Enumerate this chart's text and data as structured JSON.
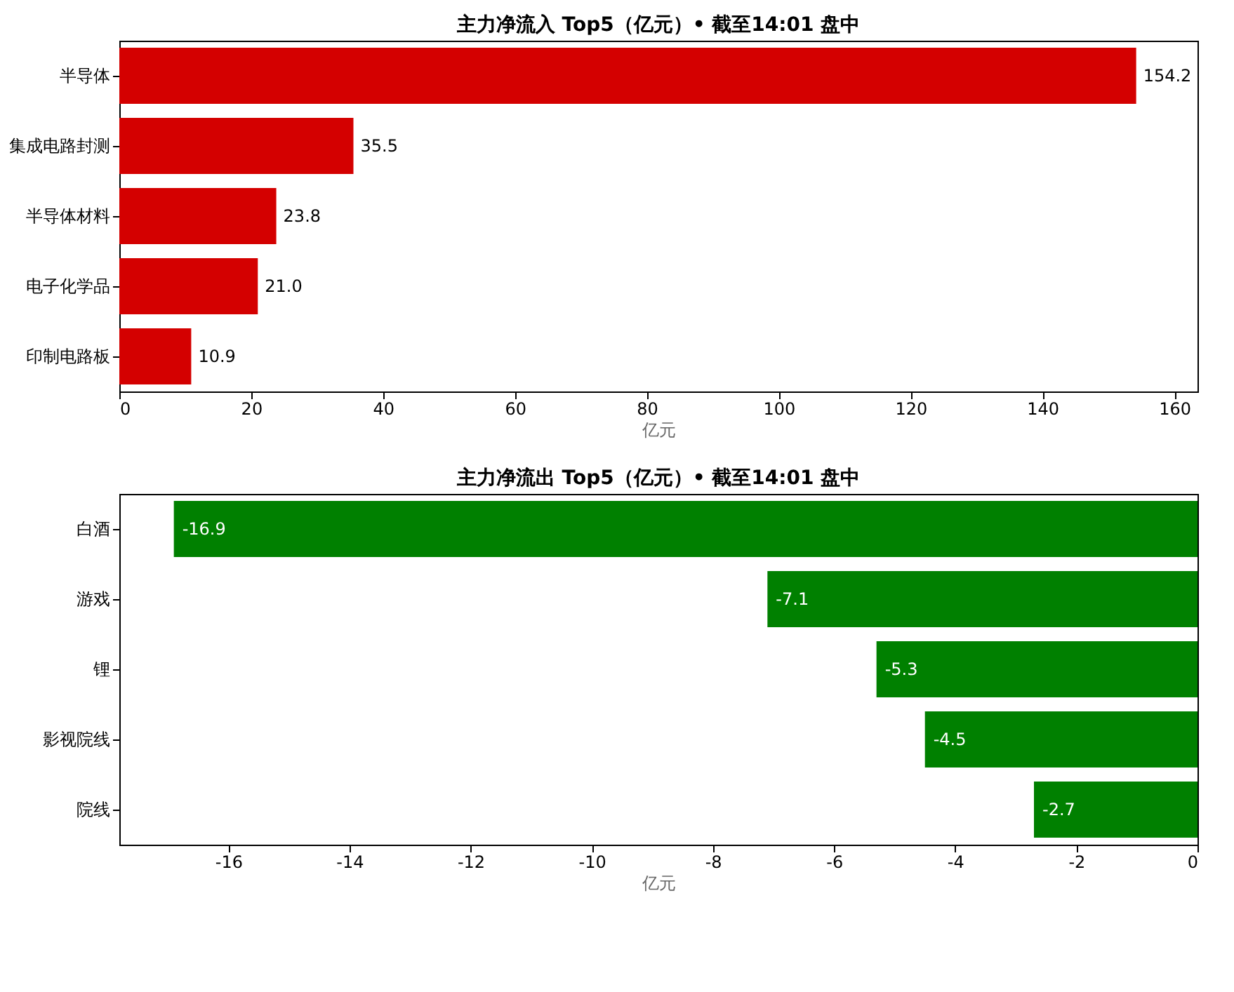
{
  "chart_data": [
    {
      "type": "bar",
      "orientation": "horizontal",
      "title": "主力净流入 Top5（亿元）• 截至14:01 盘中",
      "xlabel": "亿元",
      "categories": [
        "半导体",
        "集成电路封测",
        "半导体材料",
        "电子化学品",
        "印制电路板"
      ],
      "values": [
        154.2,
        35.5,
        23.8,
        21.0,
        10.9
      ],
      "color": "#d40000",
      "xlim": [
        0,
        163.5
      ],
      "xticks": [
        0,
        20,
        40,
        60,
        80,
        100,
        120,
        140,
        160
      ],
      "value_labels": [
        "154.2",
        "35.5",
        "23.8",
        "21.0",
        "10.9"
      ],
      "grid": false
    },
    {
      "type": "bar",
      "orientation": "horizontal",
      "title": "主力净流出 Top5（亿元）• 截至14:01 盘中",
      "xlabel": "亿元",
      "categories": [
        "白酒",
        "游戏",
        "锂",
        "影视院线",
        "院线"
      ],
      "values": [
        -16.9,
        -7.1,
        -5.3,
        -4.5,
        -2.7
      ],
      "color": "#008000",
      "xlim": [
        -17.8,
        0
      ],
      "xticks": [
        -16,
        -14,
        -12,
        -10,
        -8,
        -6,
        -4,
        -2,
        0
      ],
      "data_labels": true,
      "grid": false
    }
  ]
}
